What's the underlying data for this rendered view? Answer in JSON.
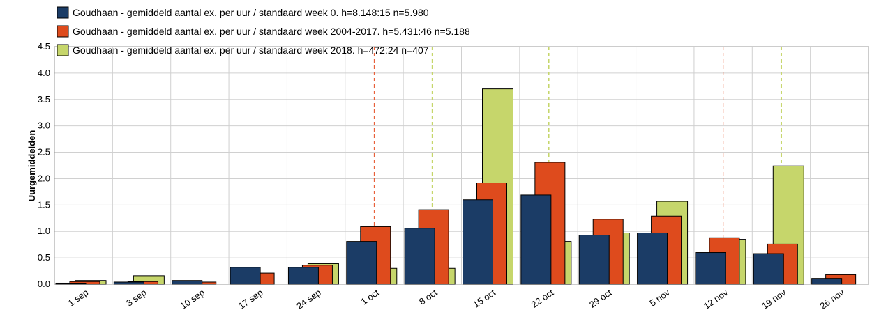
{
  "chart_data": {
    "type": "bar",
    "ylabel": "Uurgemiddelden",
    "categories": [
      "1 sep",
      "3 sep",
      "10 sep",
      "17 sep",
      "24 sep",
      "1 oct",
      "8 oct",
      "15 oct",
      "22 oct",
      "29 oct",
      "5 nov",
      "12 nov",
      "19 nov",
      "26 nov"
    ],
    "series": [
      {
        "name": "Goudhaan - gemiddeld aantal ex. per uur / standaard week 0. h=8.148:15 n=5.980",
        "color": "#1b3c66",
        "values": [
          0.02,
          0.04,
          0.07,
          0.32,
          0.32,
          0.81,
          1.06,
          1.6,
          1.69,
          0.93,
          0.97,
          0.6,
          0.58,
          0.11
        ]
      },
      {
        "name": "Goudhaan - gemiddeld aantal ex. per uur / standaard week 2004-2017. h=5.431:46 n=5.188",
        "color": "#de4b1d",
        "values": [
          0.05,
          0.05,
          0.04,
          0.21,
          0.36,
          1.09,
          1.41,
          1.92,
          2.31,
          1.23,
          1.29,
          0.88,
          0.76,
          0.18
        ],
        "markers": [
          "1 oct",
          "12 nov"
        ]
      },
      {
        "name": "Goudhaan - gemiddeld aantal ex. per uur / standaard week 2018. h=472:24 n=407",
        "color": "#c6d66b",
        "values": [
          0.07,
          0.16,
          0,
          0,
          0.39,
          0.3,
          0.3,
          3.7,
          0.81,
          0.97,
          1.57,
          0.85,
          2.24,
          0
        ],
        "markers": [
          "8 oct",
          "22 oct",
          "19 nov"
        ]
      }
    ],
    "ylim": [
      0,
      4.5
    ],
    "yticks": [
      {
        "value": 0,
        "label": "0.0"
      },
      0.5,
      {
        "value": 1,
        "label": "1.0"
      },
      1.5,
      {
        "value": 2,
        "label": "2.0"
      },
      2.5,
      {
        "value": 3,
        "label": "3.0"
      },
      3.5,
      {
        "value": 4,
        "label": "4.0"
      },
      4.5
    ],
    "grid": true
  }
}
